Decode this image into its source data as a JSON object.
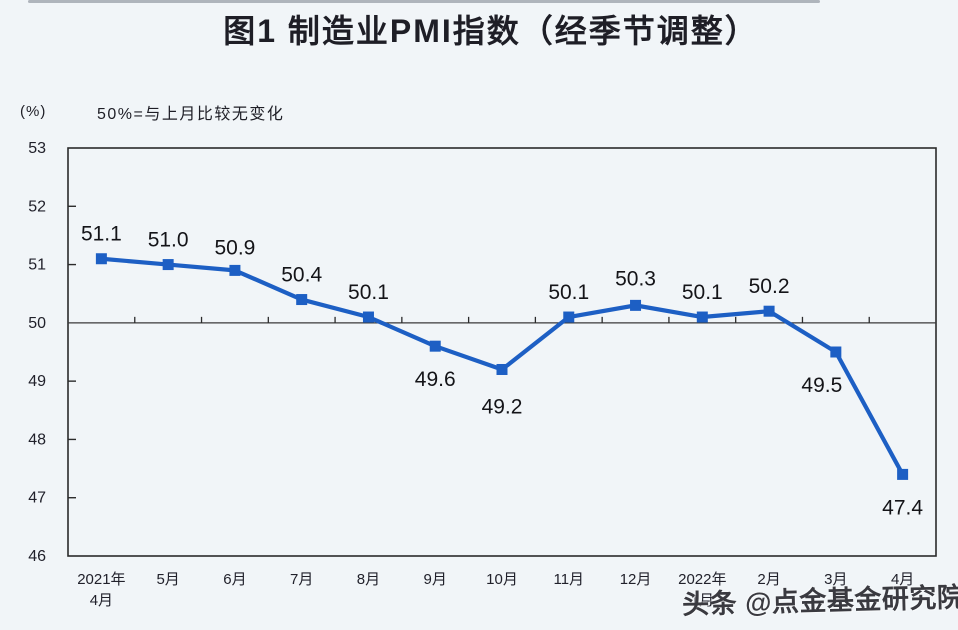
{
  "chart_data": {
    "type": "line",
    "title": "图1 制造业PMI指数（经季节调整）",
    "unit_label": "(%)",
    "note": "50%=与上月比较无变化",
    "categories": [
      "2021年\n4月",
      "5月",
      "6月",
      "7月",
      "8月",
      "9月",
      "10月",
      "11月",
      "12月",
      "2022年\n1月",
      "2月",
      "3月",
      "4月"
    ],
    "values": [
      51.1,
      51.0,
      50.9,
      50.4,
      50.1,
      49.6,
      49.2,
      50.1,
      50.3,
      50.1,
      50.2,
      49.5,
      47.4
    ],
    "point_labels": [
      "51.1",
      "51.0",
      "50.9",
      "50.4",
      "50.1",
      "49.6",
      "49.2",
      "50.1",
      "50.3",
      "50.1",
      "50.2",
      "49.5",
      "47.4"
    ],
    "ylim": [
      46,
      53
    ],
    "ytick_step": 1,
    "reference_line": 50,
    "grid": false,
    "legend": null,
    "line_color": "#1d5fc4",
    "marker": "square",
    "axis_color": "#2b2b2b",
    "label_color": "#141418",
    "tick_label_color": "#21212b",
    "background": "#f1f5f8"
  },
  "watermark": {
    "text": "头条 @点金基金研究院",
    "color": "#3a3a40"
  }
}
